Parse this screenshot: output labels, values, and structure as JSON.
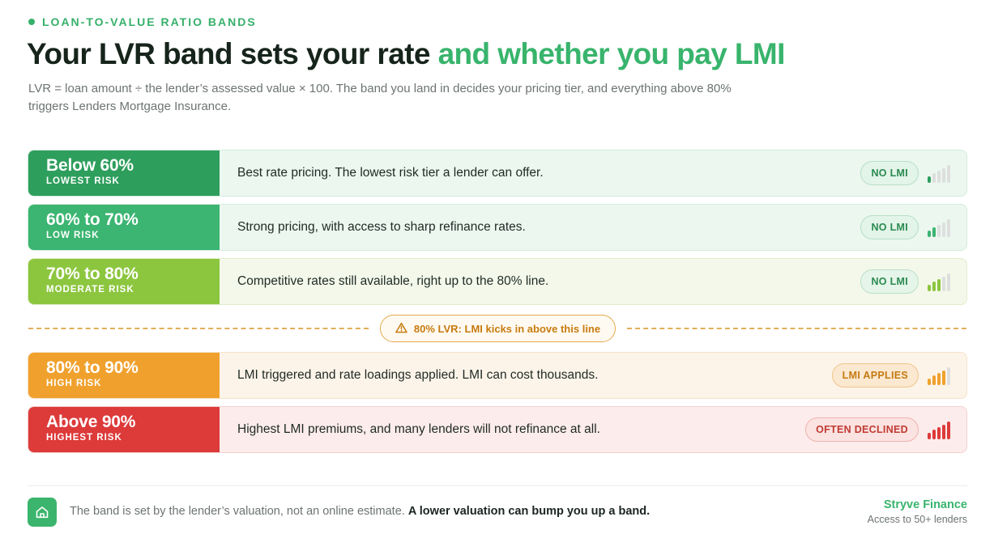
{
  "header": {
    "eyebrow": "LOAN-TO-VALUE RATIO BANDS",
    "title_dark": "Your LVR band sets your rate",
    "title_green": "and whether you pay LMI",
    "subtitle": "LVR = loan amount ÷ the lender’s assessed value × 100. The band you land in decides your pricing tier, and everything above 80% triggers Lenders Mortgage Insurance."
  },
  "bands": [
    {
      "range": "Below 60%",
      "risk": "LOWEST RISK",
      "description": "Best rate pricing. The lowest risk tier a lender can offer.",
      "badge": "NO LMI",
      "level": 1,
      "colors": {
        "label": "#2e9e5d",
        "row": "#ecf7f0",
        "border": "#d3ecdc",
        "badge_bg": "#e3f4e8",
        "badge_border": "#b8e0c5",
        "badge_text": "#2a8a50",
        "bar": "#2e9e5d"
      }
    },
    {
      "range": "60% to 70%",
      "risk": "LOW RISK",
      "description": "Strong pricing, with access to sharp refinance rates.",
      "badge": "NO LMI",
      "level": 2,
      "colors": {
        "label": "#3bb571",
        "row": "#ecf7f0",
        "border": "#d3ecdc",
        "badge_bg": "#e3f4e8",
        "badge_border": "#b8e0c5",
        "badge_text": "#2a8a50",
        "bar": "#3bb571"
      }
    },
    {
      "range": "70% to 80%",
      "risk": "MODERATE RISK",
      "description": "Competitive rates still available, right up to the 80% line.",
      "badge": "NO LMI",
      "level": 3,
      "colors": {
        "label": "#8cc63f",
        "row": "#f3f8ea",
        "border": "#e1eccc",
        "badge_bg": "#e6f5ea",
        "badge_border": "#b8e0c5",
        "badge_text": "#2a8a50",
        "bar": "#8cc63f"
      }
    },
    {
      "range": "80% to 90%",
      "risk": "HIGH RISK",
      "description": "LMI triggered and rate loadings applied. LMI can cost thousands.",
      "badge": "LMI APPLIES",
      "level": 4,
      "colors": {
        "label": "#f0a12d",
        "row": "#fdf4e9",
        "border": "#f5e2c8",
        "badge_bg": "#fbe8d0",
        "badge_border": "#efc58c",
        "badge_text": "#c47a12",
        "bar": "#f0a12d"
      }
    },
    {
      "range": "Above 90%",
      "risk": "HIGHEST RISK",
      "description": "Highest LMI premiums, and many lenders will not refinance at all.",
      "badge": "OFTEN DECLINED",
      "level": 5,
      "colors": {
        "label": "#dd3a3a",
        "row": "#fcecec",
        "border": "#f3d1d1",
        "badge_bg": "#fbe3e1",
        "badge_border": "#eeb3ae",
        "badge_text": "#c03a32",
        "bar": "#dd3a3a"
      }
    }
  ],
  "threshold": {
    "label": "80% LVR: LMI kicks in above this line",
    "icon": "warning-icon"
  },
  "footer": {
    "note": "The band is set by the lender’s valuation, not an online estimate. ",
    "note_bold": "A lower valuation can bump you up a band.",
    "icon": "home-icon",
    "brand": "Stryve Finance",
    "tagline": "Access to 50+ lenders"
  },
  "colors": {
    "accent": "#38b46c",
    "inactive_bar": "#dcdfdd"
  }
}
